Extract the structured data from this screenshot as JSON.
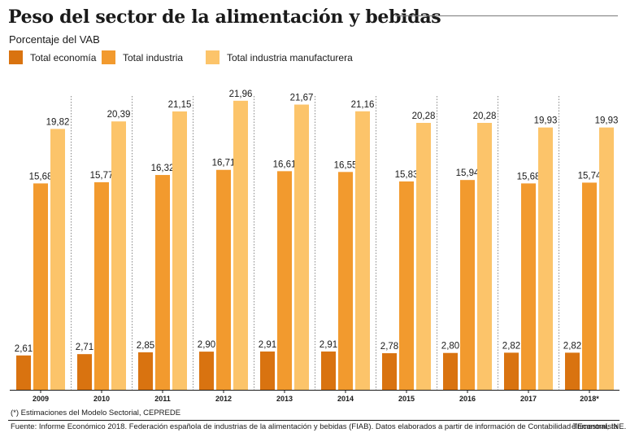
{
  "header": {
    "title": "Peso del sector de la alimentación y bebidas",
    "subtitle": "Porcentaje del VAB"
  },
  "footer": {
    "footnote": "(*) Estimaciones del Modelo Sectorial, CEPREDE",
    "source": "Fuente: Informe Económico 2018. Federación española de industrias de la alimentación y bebidas (FIAB). Datos elaborados a partir de información de Contabilidad Trimestral, INE.",
    "brand": "elEconomista"
  },
  "chart_data": {
    "type": "bar",
    "title": "Peso del sector de la alimentación y bebidas",
    "subtitle": "Porcentaje del VAB",
    "xlabel": "",
    "ylabel": "",
    "ylim": [
      0,
      23
    ],
    "grid": false,
    "legend_position": "top-left",
    "categories": [
      "2009",
      "2010",
      "2011",
      "2012",
      "2013",
      "2014",
      "2015",
      "2016",
      "2017",
      "2018*"
    ],
    "series": [
      {
        "name": "Total economía",
        "color": "#d97310",
        "values": [
          2.61,
          2.71,
          2.85,
          2.9,
          2.91,
          2.91,
          2.78,
          2.8,
          2.82,
          2.82
        ],
        "labels": [
          "2,61",
          "2,71",
          "2,85",
          "2,90",
          "2,91",
          "2,91",
          "2,78",
          "2,80",
          "2,82",
          "2,82"
        ]
      },
      {
        "name": "Total industria",
        "color": "#f29a2e",
        "values": [
          15.68,
          15.77,
          16.32,
          16.71,
          16.61,
          16.55,
          15.83,
          15.94,
          15.68,
          15.74
        ],
        "labels": [
          "15,68",
          "15,77",
          "16,32",
          "16,71",
          "16,61",
          "16,55",
          "15,83",
          "15,94",
          "15,68",
          "15,74"
        ]
      },
      {
        "name": "Total industria manufacturera",
        "color": "#fcc46a",
        "values": [
          19.82,
          20.39,
          21.15,
          21.96,
          21.67,
          21.16,
          20.28,
          20.28,
          19.93,
          19.93
        ],
        "labels": [
          "19,82",
          "20,39",
          "21,15",
          "21,96",
          "21,67",
          "21,16",
          "20,28",
          "20,28",
          "19,93",
          "19,93"
        ]
      }
    ]
  }
}
